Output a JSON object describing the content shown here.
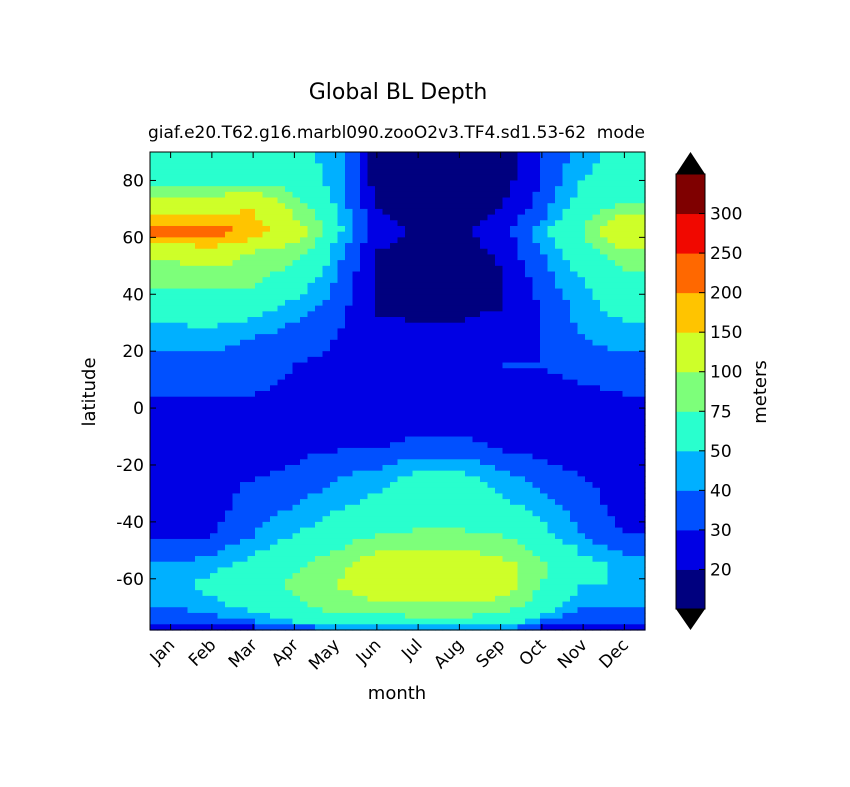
{
  "chart_data": {
    "type": "heatmap",
    "title": "Global BL Depth",
    "subtitle_left": "giaf.e20.T62.g16.marbl090.zooO2v3.TF4.sd1.53-62",
    "subtitle_right": "mode",
    "xlabel": "month",
    "ylabel": "latitude",
    "x_categories": [
      "Jan",
      "Feb",
      "Mar",
      "Apr",
      "May",
      "Jun",
      "Jul",
      "Aug",
      "Sep",
      "Oct",
      "Nov",
      "Dec"
    ],
    "yticks": [
      80,
      60,
      40,
      20,
      0,
      -20,
      -40,
      -60
    ],
    "ylim": [
      -78,
      90
    ],
    "colorbar": {
      "label": "meters",
      "levels": [
        10,
        20,
        30,
        40,
        50,
        75,
        100,
        150,
        200,
        250,
        300,
        350
      ],
      "tick_labels": [
        "20",
        "30",
        "40",
        "50",
        "75",
        "100",
        "150",
        "200",
        "250",
        "300"
      ],
      "colors": [
        "#00007f",
        "#0000e4",
        "#0050ff",
        "#00b0ff",
        "#29ffce",
        "#7dff7a",
        "#ceff29",
        "#ffc400",
        "#ff6800",
        "#f10800",
        "#7f0000"
      ],
      "under_color": "#000000",
      "over_color": "#000000"
    },
    "latitudes": [
      90,
      80,
      70,
      62,
      55,
      45,
      35,
      25,
      15,
      5,
      0,
      -5,
      -15,
      -25,
      -35,
      -45,
      -55,
      -62,
      -70,
      -75,
      -78
    ],
    "values_by_month": {
      "Jan": [
        60,
        62,
        120,
        220,
        110,
        80,
        55,
        45,
        35,
        30,
        22,
        25,
        25,
        28,
        22,
        28,
        40,
        45,
        40,
        30,
        15
      ],
      "Feb": [
        60,
        62,
        130,
        240,
        120,
        85,
        60,
        45,
        35,
        30,
        22,
        25,
        25,
        28,
        25,
        30,
        45,
        55,
        45,
        35,
        20
      ],
      "Mar": [
        60,
        65,
        150,
        170,
        100,
        80,
        55,
        40,
        35,
        30,
        22,
        25,
        25,
        30,
        35,
        40,
        55,
        65,
        55,
        40,
        25
      ],
      "Apr": [
        55,
        60,
        90,
        120,
        85,
        60,
        45,
        35,
        30,
        28,
        22,
        22,
        28,
        32,
        40,
        50,
        70,
        80,
        70,
        50,
        30
      ],
      "May": [
        45,
        45,
        50,
        55,
        45,
        40,
        35,
        30,
        28,
        25,
        22,
        22,
        30,
        40,
        48,
        60,
        90,
        100,
        85,
        60,
        35
      ],
      "Jun": [
        15,
        15,
        20,
        25,
        20,
        18,
        18,
        25,
        28,
        25,
        22,
        22,
        30,
        45,
        55,
        75,
        120,
        125,
        90,
        60,
        40
      ],
      "Jul": [
        12,
        12,
        15,
        18,
        16,
        15,
        16,
        25,
        28,
        25,
        22,
        25,
        35,
        55,
        60,
        80,
        120,
        130,
        95,
        65,
        40
      ],
      "Aug": [
        12,
        12,
        15,
        18,
        16,
        15,
        16,
        25,
        28,
        25,
        22,
        25,
        35,
        55,
        60,
        80,
        120,
        130,
        95,
        65,
        40
      ],
      "Sep": [
        15,
        15,
        20,
        25,
        22,
        18,
        20,
        28,
        30,
        25,
        22,
        22,
        30,
        45,
        55,
        75,
        110,
        120,
        85,
        60,
        40
      ],
      "Oct": [
        30,
        30,
        35,
        45,
        40,
        35,
        30,
        30,
        30,
        25,
        22,
        22,
        28,
        35,
        45,
        55,
        80,
        75,
        60,
        40,
        25
      ],
      "Nov": [
        45,
        50,
        60,
        75,
        60,
        50,
        45,
        40,
        35,
        28,
        22,
        22,
        25,
        30,
        35,
        40,
        55,
        50,
        40,
        30,
        20
      ],
      "Dec": [
        55,
        60,
        80,
        150,
        90,
        65,
        55,
        45,
        35,
        30,
        22,
        25,
        25,
        28,
        25,
        30,
        45,
        50,
        40,
        30,
        18
      ]
    }
  }
}
